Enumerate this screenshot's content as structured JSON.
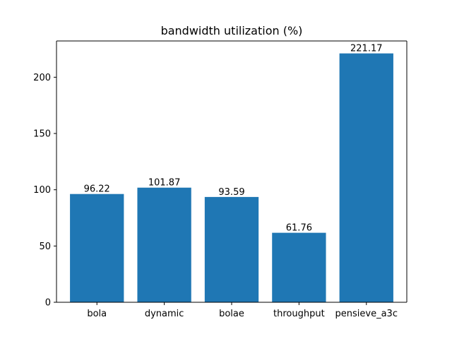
{
  "chart_data": {
    "type": "bar",
    "title": "bandwidth utilization (%)",
    "xlabel": "",
    "ylabel": "",
    "categories": [
      "bola",
      "dynamic",
      "bolae",
      "throughput",
      "pensieve_a3c"
    ],
    "values": [
      96.22,
      101.87,
      93.59,
      61.76,
      221.17
    ],
    "value_labels": [
      "96.22",
      "101.87",
      "93.59",
      "61.76",
      "221.17"
    ],
    "ylim": [
      0,
      232.23
    ],
    "yticks": [
      0,
      50,
      100,
      150,
      200
    ],
    "ytick_labels": [
      "0",
      "50",
      "100",
      "150",
      "200"
    ],
    "bar_color": "#1f77b4",
    "grid": false,
    "legend": "none"
  }
}
